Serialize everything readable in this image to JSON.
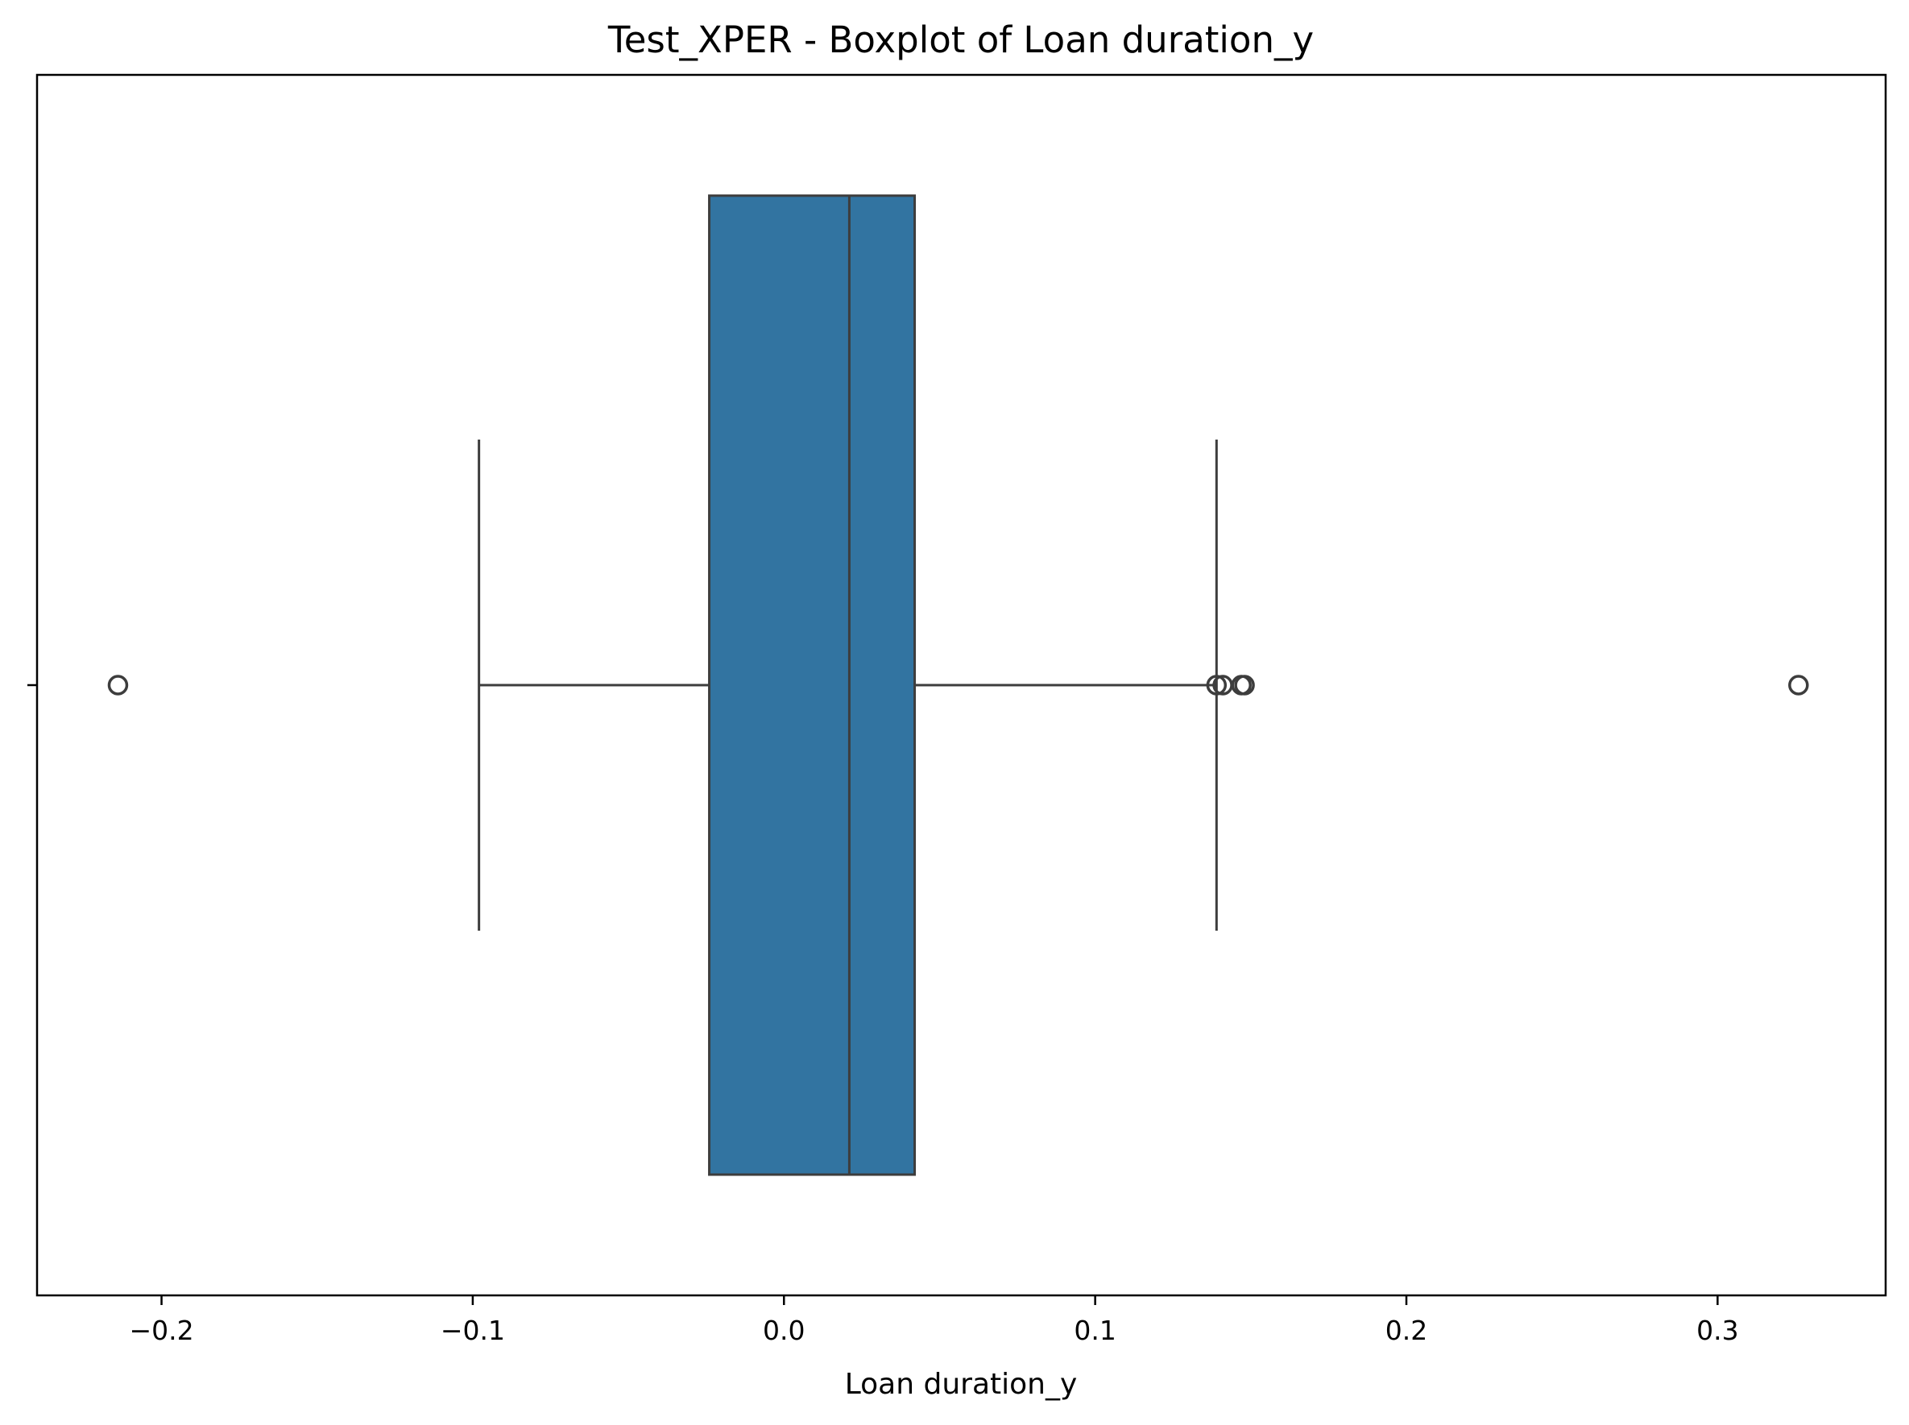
{
  "chart_data": {
    "type": "box",
    "title": "Test_XPER - Boxplot of Loan duration_y",
    "xlabel": "Loan duration_y",
    "ylabel": "",
    "xlim": [
      -0.24,
      0.354
    ],
    "x_ticks": [
      -0.2,
      -0.1,
      0.0,
      0.1,
      0.2,
      0.3
    ],
    "x_tick_labels": [
      "−0.2",
      "−0.1",
      "0.0",
      "0.1",
      "0.2",
      "0.3"
    ],
    "grid": false,
    "legend": null,
    "box": {
      "whisker_low": -0.098,
      "q1": -0.024,
      "median": 0.021,
      "q3": 0.042,
      "whisker_high": 0.139,
      "outliers": [
        -0.214,
        0.139,
        0.141,
        0.147,
        0.148,
        0.326
      ]
    },
    "colors": {
      "box_fill": "#3274a1",
      "line": "#3d3d3d",
      "frame": "#000000"
    }
  }
}
